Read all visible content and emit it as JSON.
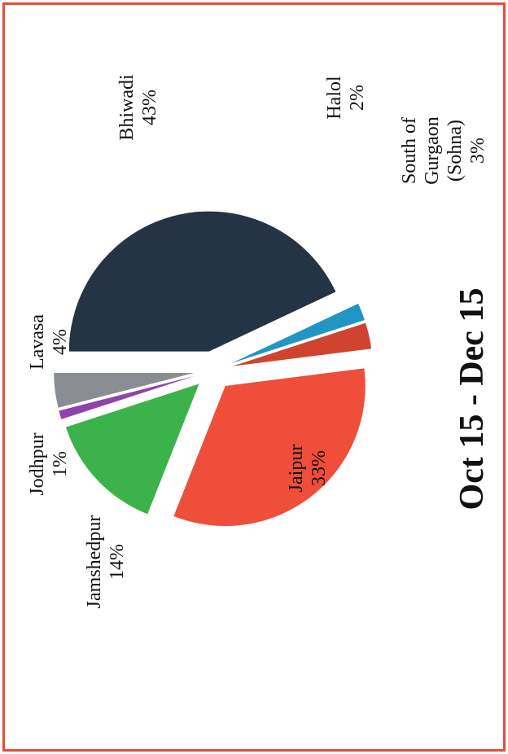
{
  "chart_data": {
    "type": "pie",
    "title": "Oct 15 - Dec 15",
    "categories": [
      "Bhiwadi",
      "Halol",
      "South of Gurgaon (Sohna)",
      "Jaipur",
      "Jamshedpur",
      "Jodhpur",
      "Lavasa"
    ],
    "values": [
      43,
      2,
      3,
      33,
      14,
      1,
      4
    ],
    "value_labels": [
      "43%",
      "2%",
      "3%",
      "33%",
      "14%",
      "1%",
      "4%"
    ],
    "colors": [
      "#253445",
      "#2196c4",
      "#d0432e",
      "#ef4e3a",
      "#3bb34a",
      "#8e44ad",
      "#8a8e93"
    ]
  }
}
